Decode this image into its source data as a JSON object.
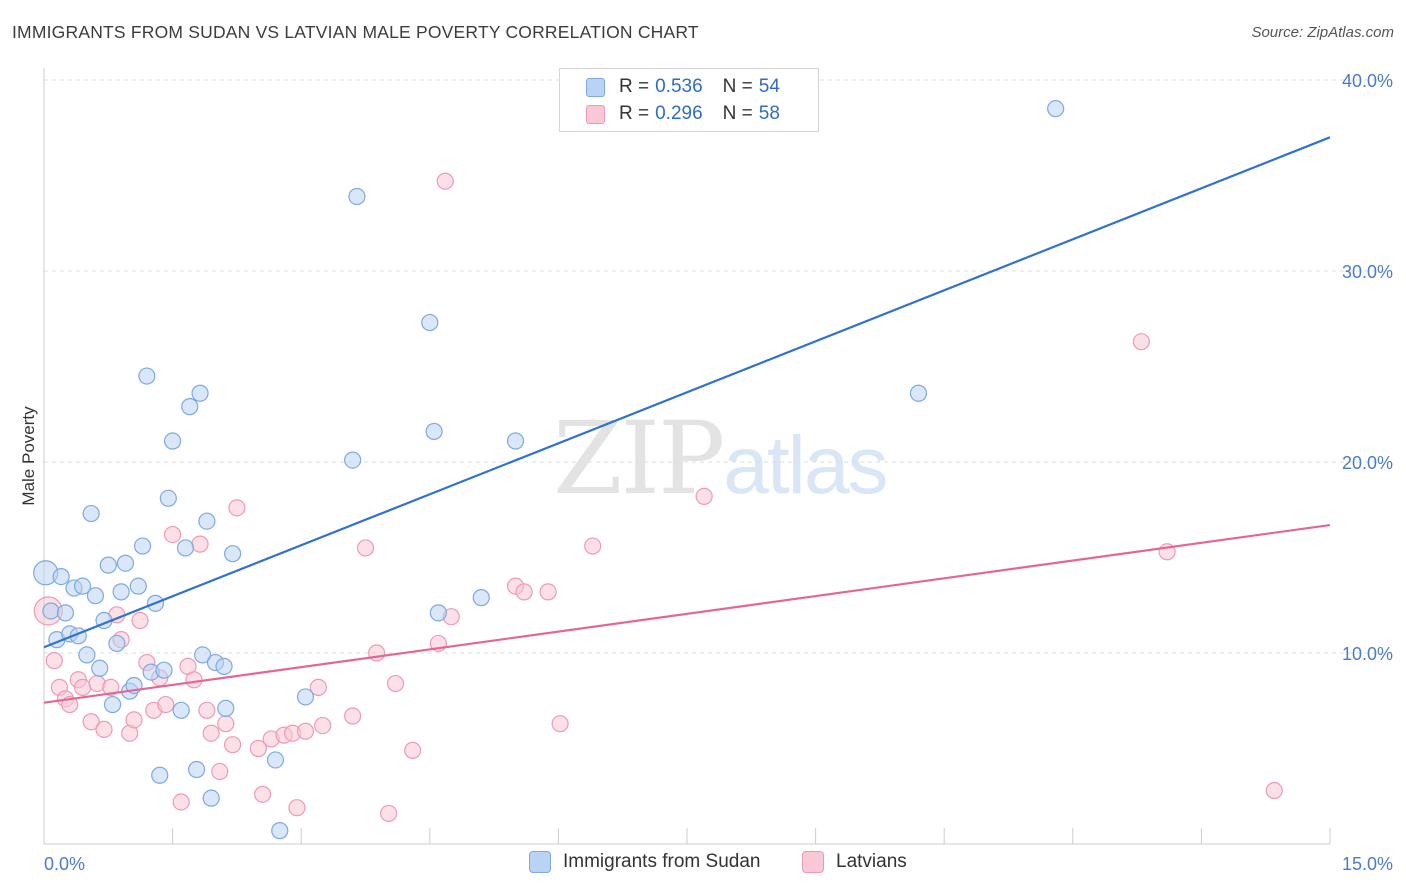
{
  "title": "IMMIGRANTS FROM SUDAN VS LATVIAN MALE POVERTY CORRELATION CHART",
  "source": "Source: ZipAtlas.com",
  "watermark": {
    "part1": "ZIP",
    "part2": "atlas"
  },
  "legend": {
    "rows": [
      {
        "r_label": "R =",
        "r_value": "0.536",
        "n_label": "N =",
        "n_value": "54"
      },
      {
        "r_label": "R =",
        "r_value": "0.296",
        "n_label": "N =",
        "n_value": "58"
      }
    ]
  },
  "colors": {
    "sudan_fill": "#b9d3f4",
    "sudan_stroke": "#7ea9e1",
    "sudan_line": "#2f73cc",
    "latvian_fill": "#f9c7d6",
    "latvian_stroke": "#ee9ab4",
    "latvian_line": "#e46792",
    "grid": "#dddddd",
    "axis_text": "#4a7cc9"
  },
  "chart_data": {
    "type": "scatter",
    "title": "IMMIGRANTS FROM SUDAN VS LATVIAN MALE POVERTY CORRELATION CHART",
    "xlabel": "",
    "ylabel": "Male Poverty",
    "xlim": [
      0,
      15
    ],
    "ylim": [
      0,
      40
    ],
    "x_tick_labels": [
      "0.0%",
      "15.0%"
    ],
    "y_tick_labels": [
      "10.0%",
      "20.0%",
      "30.0%",
      "40.0%"
    ],
    "y_ticks": [
      10,
      20,
      30,
      40
    ],
    "grid": true,
    "legend_position": "top-center",
    "series": [
      {
        "name": "Immigrants from Sudan",
        "color": "#b9d3f4",
        "trend": [
          [
            0,
            10.3
          ],
          [
            15,
            37.0
          ]
        ],
        "points": [
          [
            0.02,
            14.2
          ],
          [
            0.08,
            12.2
          ],
          [
            0.15,
            10.7
          ],
          [
            0.2,
            14.0
          ],
          [
            0.25,
            12.1
          ],
          [
            0.3,
            11.0
          ],
          [
            0.35,
            13.4
          ],
          [
            0.4,
            10.9
          ],
          [
            0.45,
            13.5
          ],
          [
            0.5,
            9.9
          ],
          [
            0.55,
            17.3
          ],
          [
            0.6,
            13.0
          ],
          [
            0.65,
            9.2
          ],
          [
            0.7,
            11.7
          ],
          [
            0.75,
            14.6
          ],
          [
            0.8,
            7.3
          ],
          [
            0.85,
            10.5
          ],
          [
            0.9,
            13.2
          ],
          [
            0.95,
            14.7
          ],
          [
            1.0,
            8.0
          ],
          [
            1.05,
            8.3
          ],
          [
            1.1,
            13.5
          ],
          [
            1.15,
            15.6
          ],
          [
            1.2,
            24.5
          ],
          [
            1.25,
            9.0
          ],
          [
            1.3,
            12.6
          ],
          [
            1.35,
            3.6
          ],
          [
            1.4,
            9.1
          ],
          [
            1.45,
            18.1
          ],
          [
            1.5,
            21.1
          ],
          [
            1.6,
            7.0
          ],
          [
            1.65,
            15.5
          ],
          [
            1.7,
            22.9
          ],
          [
            1.78,
            3.9
          ],
          [
            1.82,
            23.6
          ],
          [
            1.85,
            9.9
          ],
          [
            1.9,
            16.9
          ],
          [
            1.95,
            2.4
          ],
          [
            2.0,
            9.5
          ],
          [
            2.1,
            9.3
          ],
          [
            2.12,
            7.1
          ],
          [
            2.2,
            15.2
          ],
          [
            2.7,
            4.4
          ],
          [
            2.75,
            0.7
          ],
          [
            3.05,
            7.7
          ],
          [
            3.6,
            20.1
          ],
          [
            3.65,
            33.9
          ],
          [
            4.5,
            27.3
          ],
          [
            4.55,
            21.6
          ],
          [
            4.6,
            12.1
          ],
          [
            5.1,
            12.9
          ],
          [
            5.5,
            21.1
          ],
          [
            10.2,
            23.6
          ],
          [
            11.8,
            38.5
          ]
        ]
      },
      {
        "name": "Latvians",
        "color": "#f9c7d6",
        "trend": [
          [
            0,
            7.4
          ],
          [
            15,
            16.7
          ]
        ],
        "points": [
          [
            0.05,
            12.2
          ],
          [
            0.12,
            9.6
          ],
          [
            0.18,
            8.2
          ],
          [
            0.25,
            7.6
          ],
          [
            0.3,
            7.3
          ],
          [
            0.4,
            8.6
          ],
          [
            0.45,
            8.2
          ],
          [
            0.55,
            6.4
          ],
          [
            0.62,
            8.4
          ],
          [
            0.7,
            6.0
          ],
          [
            0.78,
            8.2
          ],
          [
            0.85,
            12.0
          ],
          [
            0.9,
            10.7
          ],
          [
            1.0,
            5.8
          ],
          [
            1.05,
            6.5
          ],
          [
            1.12,
            11.7
          ],
          [
            1.2,
            9.5
          ],
          [
            1.28,
            7.0
          ],
          [
            1.35,
            8.7
          ],
          [
            1.42,
            7.3
          ],
          [
            1.5,
            16.2
          ],
          [
            1.6,
            2.2
          ],
          [
            1.68,
            9.3
          ],
          [
            1.75,
            8.6
          ],
          [
            1.82,
            15.7
          ],
          [
            1.9,
            7.0
          ],
          [
            1.95,
            5.8
          ],
          [
            2.05,
            3.8
          ],
          [
            2.12,
            6.3
          ],
          [
            2.2,
            5.2
          ],
          [
            2.25,
            17.6
          ],
          [
            2.5,
            5.0
          ],
          [
            2.55,
            2.6
          ],
          [
            2.65,
            5.5
          ],
          [
            2.8,
            5.7
          ],
          [
            2.9,
            5.8
          ],
          [
            2.95,
            1.9
          ],
          [
            3.05,
            5.9
          ],
          [
            3.2,
            8.2
          ],
          [
            3.25,
            6.2
          ],
          [
            3.6,
            6.7
          ],
          [
            3.75,
            15.5
          ],
          [
            3.88,
            10.0
          ],
          [
            4.02,
            1.6
          ],
          [
            4.1,
            8.4
          ],
          [
            4.3,
            4.9
          ],
          [
            4.6,
            10.5
          ],
          [
            4.68,
            34.7
          ],
          [
            4.75,
            11.9
          ],
          [
            5.5,
            13.5
          ],
          [
            5.6,
            13.2
          ],
          [
            5.88,
            13.2
          ],
          [
            6.02,
            6.3
          ],
          [
            6.4,
            15.6
          ],
          [
            7.7,
            18.2
          ],
          [
            12.8,
            26.3
          ],
          [
            13.1,
            15.3
          ],
          [
            14.35,
            2.8
          ]
        ]
      }
    ]
  }
}
